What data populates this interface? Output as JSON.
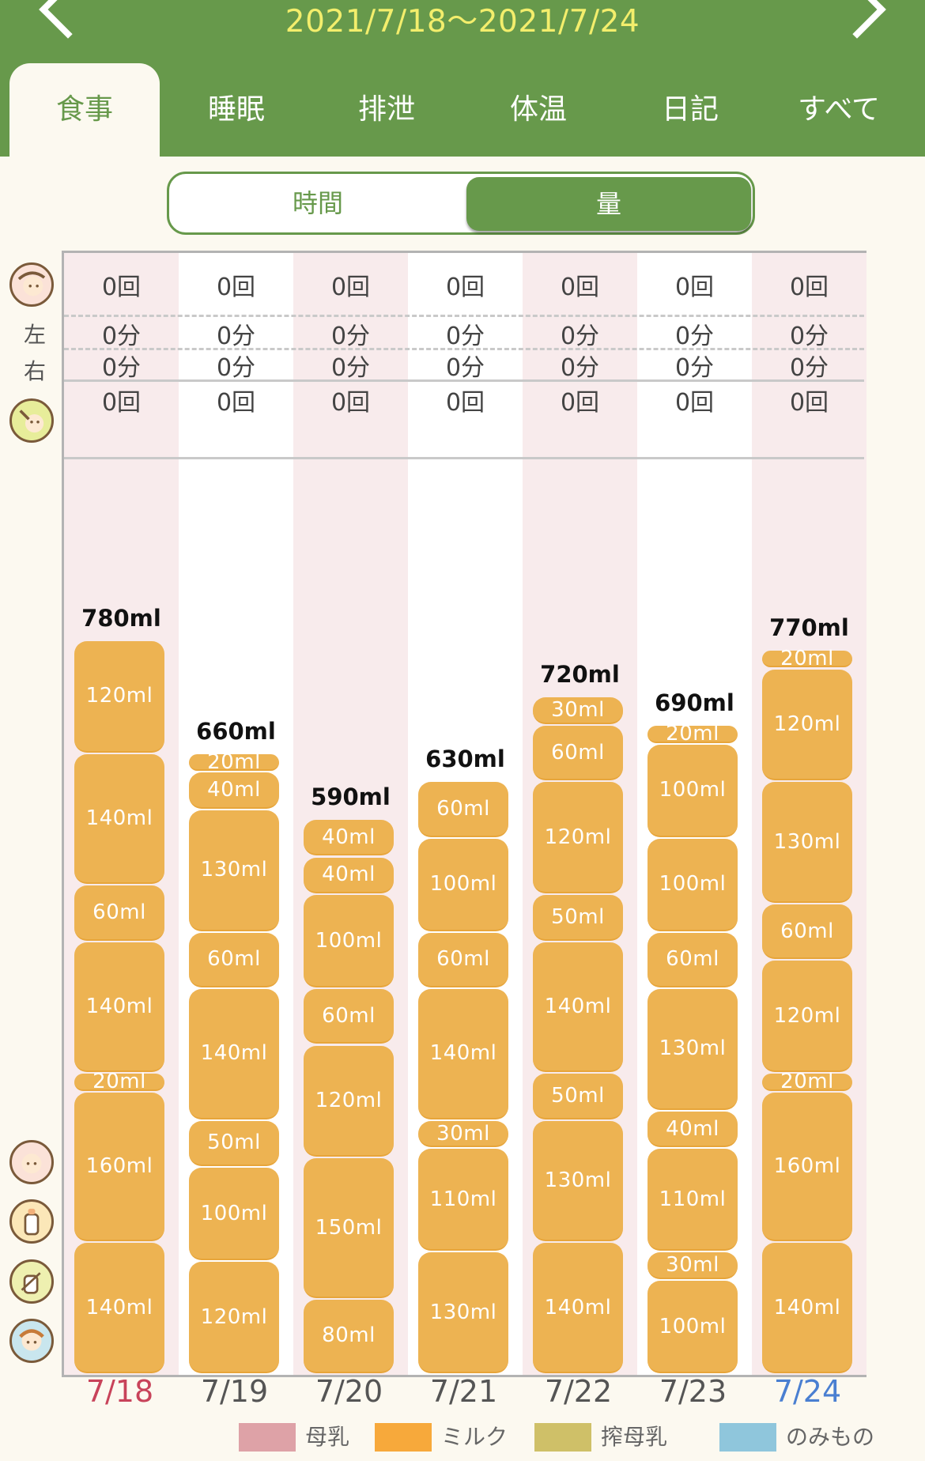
{
  "header": {
    "range": "2021/7/18〜2021/7/24",
    "tabs": [
      "食事",
      "睡眠",
      "排泄",
      "体温",
      "日記",
      "すべて"
    ]
  },
  "segment": {
    "time_label": "時間",
    "amount_label": "量",
    "selected": "量"
  },
  "side_labels": {
    "left": "左",
    "right": "右"
  },
  "days": [
    {
      "date": "7/18",
      "color": "#c8435a",
      "breast_count": "0回",
      "left": "0分",
      "right": "0分",
      "food_count": "0回",
      "total": "780ml",
      "segments": [
        {
          "label": "120ml",
          "v": 120
        },
        {
          "label": "140ml",
          "v": 140
        },
        {
          "label": "60ml",
          "v": 60
        },
        {
          "label": "140ml",
          "v": 140
        },
        {
          "label": "20ml",
          "v": 20
        },
        {
          "label": "160ml",
          "v": 160
        },
        {
          "label": "140ml",
          "v": 140
        }
      ]
    },
    {
      "date": "7/19",
      "color": "#555555",
      "breast_count": "0回",
      "left": "0分",
      "right": "0分",
      "food_count": "0回",
      "total": "660ml",
      "segments": [
        {
          "label": "20ml",
          "v": 20
        },
        {
          "label": "40ml",
          "v": 40
        },
        {
          "label": "130ml",
          "v": 130
        },
        {
          "label": "60ml",
          "v": 60
        },
        {
          "label": "140ml",
          "v": 140
        },
        {
          "label": "50ml",
          "v": 50
        },
        {
          "label": "100ml",
          "v": 100
        },
        {
          "label": "120ml",
          "v": 120
        }
      ]
    },
    {
      "date": "7/20",
      "color": "#555555",
      "breast_count": "0回",
      "left": "0分",
      "right": "0分",
      "food_count": "0回",
      "total": "590ml",
      "segments": [
        {
          "label": "40ml",
          "v": 40
        },
        {
          "label": "40ml",
          "v": 40
        },
        {
          "label": "100ml",
          "v": 100
        },
        {
          "label": "60ml",
          "v": 60
        },
        {
          "label": "120ml",
          "v": 120
        },
        {
          "label": "150ml",
          "v": 150
        },
        {
          "label": "80ml",
          "v": 80
        }
      ]
    },
    {
      "date": "7/21",
      "color": "#555555",
      "breast_count": "0回",
      "left": "0分",
      "right": "0分",
      "food_count": "0回",
      "total": "630ml",
      "segments": [
        {
          "label": "60ml",
          "v": 60
        },
        {
          "label": "100ml",
          "v": 100
        },
        {
          "label": "60ml",
          "v": 60
        },
        {
          "label": "140ml",
          "v": 140
        },
        {
          "label": "30ml",
          "v": 30
        },
        {
          "label": "110ml",
          "v": 110
        },
        {
          "label": "130ml",
          "v": 130
        }
      ]
    },
    {
      "date": "7/22",
      "color": "#555555",
      "breast_count": "0回",
      "left": "0分",
      "right": "0分",
      "food_count": "0回",
      "total": "720ml",
      "segments": [
        {
          "label": "30ml",
          "v": 30
        },
        {
          "label": "60ml",
          "v": 60
        },
        {
          "label": "120ml",
          "v": 120
        },
        {
          "label": "50ml",
          "v": 50
        },
        {
          "label": "140ml",
          "v": 140
        },
        {
          "label": "50ml",
          "v": 50
        },
        {
          "label": "130ml",
          "v": 130
        },
        {
          "label": "140ml",
          "v": 140
        }
      ]
    },
    {
      "date": "7/23",
      "color": "#555555",
      "breast_count": "0回",
      "left": "0分",
      "right": "0分",
      "food_count": "0回",
      "total": "690ml",
      "segments": [
        {
          "label": "20ml",
          "v": 20
        },
        {
          "label": "100ml",
          "v": 100
        },
        {
          "label": "100ml",
          "v": 100
        },
        {
          "label": "60ml",
          "v": 60
        },
        {
          "label": "130ml",
          "v": 130
        },
        {
          "label": "40ml",
          "v": 40
        },
        {
          "label": "110ml",
          "v": 110
        },
        {
          "label": "30ml",
          "v": 30
        },
        {
          "label": "100ml",
          "v": 100
        }
      ]
    },
    {
      "date": "7/24",
      "color": "#4a7fd1",
      "breast_count": "0回",
      "left": "0分",
      "right": "0分",
      "food_count": "0回",
      "total": "770ml",
      "segments": [
        {
          "label": "20ml",
          "v": 20
        },
        {
          "label": "120ml",
          "v": 120
        },
        {
          "label": "130ml",
          "v": 130
        },
        {
          "label": "60ml",
          "v": 60
        },
        {
          "label": "120ml",
          "v": 120
        },
        {
          "label": "20ml",
          "v": 20
        },
        {
          "label": "160ml",
          "v": 160
        },
        {
          "label": "140ml",
          "v": 140
        }
      ]
    }
  ],
  "legend": [
    {
      "label": "母乳",
      "color": "#dea2a7"
    },
    {
      "label": "ミルク",
      "color": "#f7a93b"
    },
    {
      "label": "搾母乳",
      "color": "#cfc068"
    },
    {
      "label": "のみもの",
      "color": "#8fc6dc"
    }
  ],
  "colors": {
    "header_green": "#67994b",
    "date_range": "#f3ee6c",
    "milk_bar": "#edb352"
  },
  "icons": [
    "breastfeeding-icon",
    "baby-food-icon",
    "breast-milk-icon",
    "bottle-icon",
    "pumped-milk-icon",
    "drink-icon"
  ]
}
